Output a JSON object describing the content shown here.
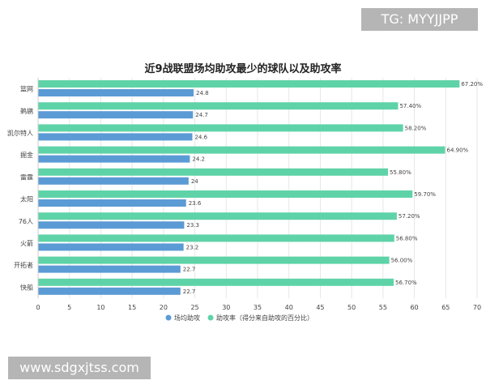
{
  "watermarks": {
    "top_right": "TG: MYYJJPP",
    "bottom_left": "www.sdgxjtss.com"
  },
  "colors": {
    "series_assists": "#5b9bd5",
    "series_rate": "#5fd3a8",
    "grid": "#e6e6e6",
    "text": "#444444",
    "title": "#222222"
  },
  "chart_data": {
    "type": "bar",
    "orientation": "horizontal",
    "title": "近9战联盟场均助攻最少的球队以及助攻率",
    "categories": [
      "篮网",
      "鹈鹕",
      "凯尔特人",
      "掘金",
      "雷霆",
      "太阳",
      "76人",
      "火箭",
      "开拓者",
      "快船"
    ],
    "series": [
      {
        "name": "场均助攻",
        "values": [
          24.8,
          24.7,
          24.6,
          24.2,
          24,
          23.6,
          23.3,
          23.2,
          22.7,
          22.7
        ],
        "labels": [
          "24.8",
          "24.7",
          "24.6",
          "24.2",
          "24",
          "23.6",
          "23.3",
          "23.2",
          "22.7",
          "22.7"
        ]
      },
      {
        "name": "助攻率（得分来自助攻的百分比）",
        "values": [
          67.2,
          57.4,
          58.2,
          64.9,
          55.8,
          59.7,
          57.2,
          56.8,
          56.0,
          56.7
        ],
        "labels": [
          "67.20%",
          "57.40%",
          "58.20%",
          "64.90%",
          "55.80%",
          "59.70%",
          "57.20%",
          "56.80%",
          "56.00%",
          "56.70%"
        ]
      }
    ],
    "xlim": [
      0,
      70
    ],
    "xticks": [
      "0",
      "5",
      "10",
      "15",
      "20",
      "25",
      "30",
      "35",
      "40",
      "45",
      "50",
      "55",
      "60",
      "65",
      "70"
    ],
    "grid": true,
    "legend_position": "bottom"
  }
}
